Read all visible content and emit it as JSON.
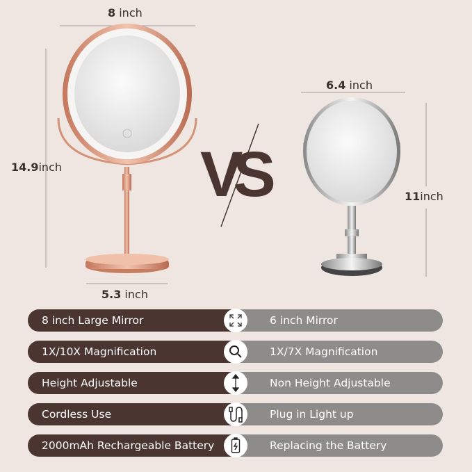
{
  "dimensions": {
    "left_width_num": "8",
    "left_width_unit": " inch",
    "left_height_num": "14.9",
    "left_height_unit": "inch",
    "left_base_num": "5.3",
    "left_base_unit": " inch",
    "right_width_num": "6.4",
    "right_width_unit": " inch",
    "right_height_num": "11",
    "right_height_unit": "inch"
  },
  "vs_text": "VS",
  "colors": {
    "background": "#efe6e1",
    "left_bar": "#4a3530",
    "right_bar": "#8e8c8b",
    "rose_gold": "#d9967a"
  },
  "rows": [
    {
      "left": "8 inch Large Mirror",
      "icon": "expand-arrows-icon",
      "right": "6 inch Mirror"
    },
    {
      "left": "1X/10X Magnification",
      "icon": "magnifier-icon",
      "right": "1X/7X Magnification"
    },
    {
      "left": "Height Adjustable",
      "icon": "vertical-arrow-icon",
      "right": "Non Height Adjustable"
    },
    {
      "left": "Cordless Use",
      "icon": "usb-cable-icon",
      "right": "Plug in Light up"
    },
    {
      "left": "2000mAh Rechargeable Battery",
      "icon": "battery-icon",
      "right": "Replacing the Battery"
    }
  ]
}
